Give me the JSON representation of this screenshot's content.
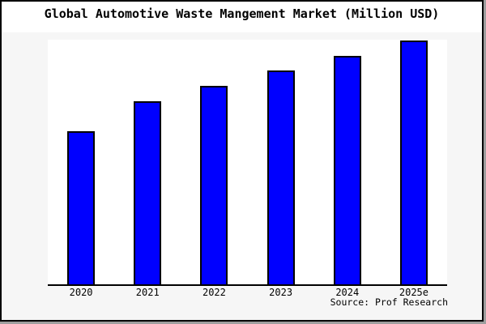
{
  "title": "Global Automotive Waste Mangement Market (Million USD)",
  "source_credit": "Source: Prof Research",
  "colors": {
    "bar": "#0000ff",
    "bar_border": "#000000",
    "axis": "#000000",
    "frame": "#000000",
    "frame_shadow": "#9e9e9e",
    "panel_background": "#f6f6f6",
    "plot_background": "#ffffff",
    "figure_background": "#ffffff",
    "text": "#000000"
  },
  "chart_data": {
    "type": "bar",
    "title": "Global Automotive Waste Mangement Market (Million USD)",
    "categories": [
      "2020",
      "2021",
      "2022",
      "2023",
      "2024",
      "2025e"
    ],
    "values": [
      62.6,
      74.8,
      81.2,
      87.5,
      93.4,
      99.7
    ],
    "series_unit": "percent of tallest bar (no numeric y-axis shown in chart)",
    "xlabel": "",
    "ylabel": "",
    "ylim": [
      0,
      100
    ],
    "y_axis_visible": false,
    "y_tick_labels": [],
    "grid": false,
    "legend": false,
    "data_labels": false,
    "source": "Source: Prof Research"
  }
}
